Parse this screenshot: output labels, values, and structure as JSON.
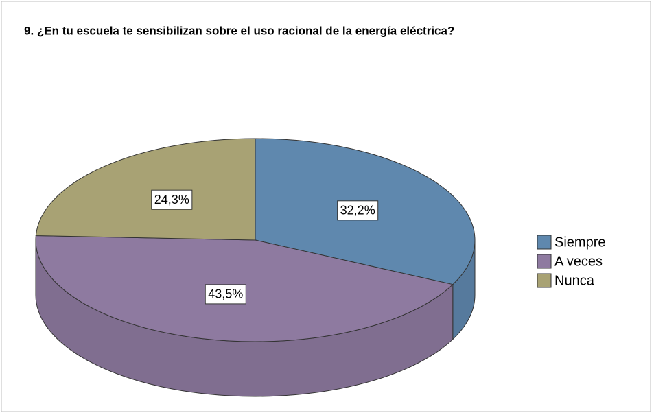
{
  "chart_data": {
    "type": "pie",
    "title": "9. ¿En tu escuela te sensibilizan sobre el uso racional de la energía eléctrica?",
    "categories": [
      "Siempre",
      "A veces",
      "Nunca"
    ],
    "values": [
      32.2,
      43.5,
      24.3
    ],
    "value_labels": [
      "32,2%",
      "43,5%",
      "24,3%"
    ],
    "colors": [
      "#5f88ae",
      "#8e7aa0",
      "#a8a274"
    ],
    "legend": "right"
  }
}
